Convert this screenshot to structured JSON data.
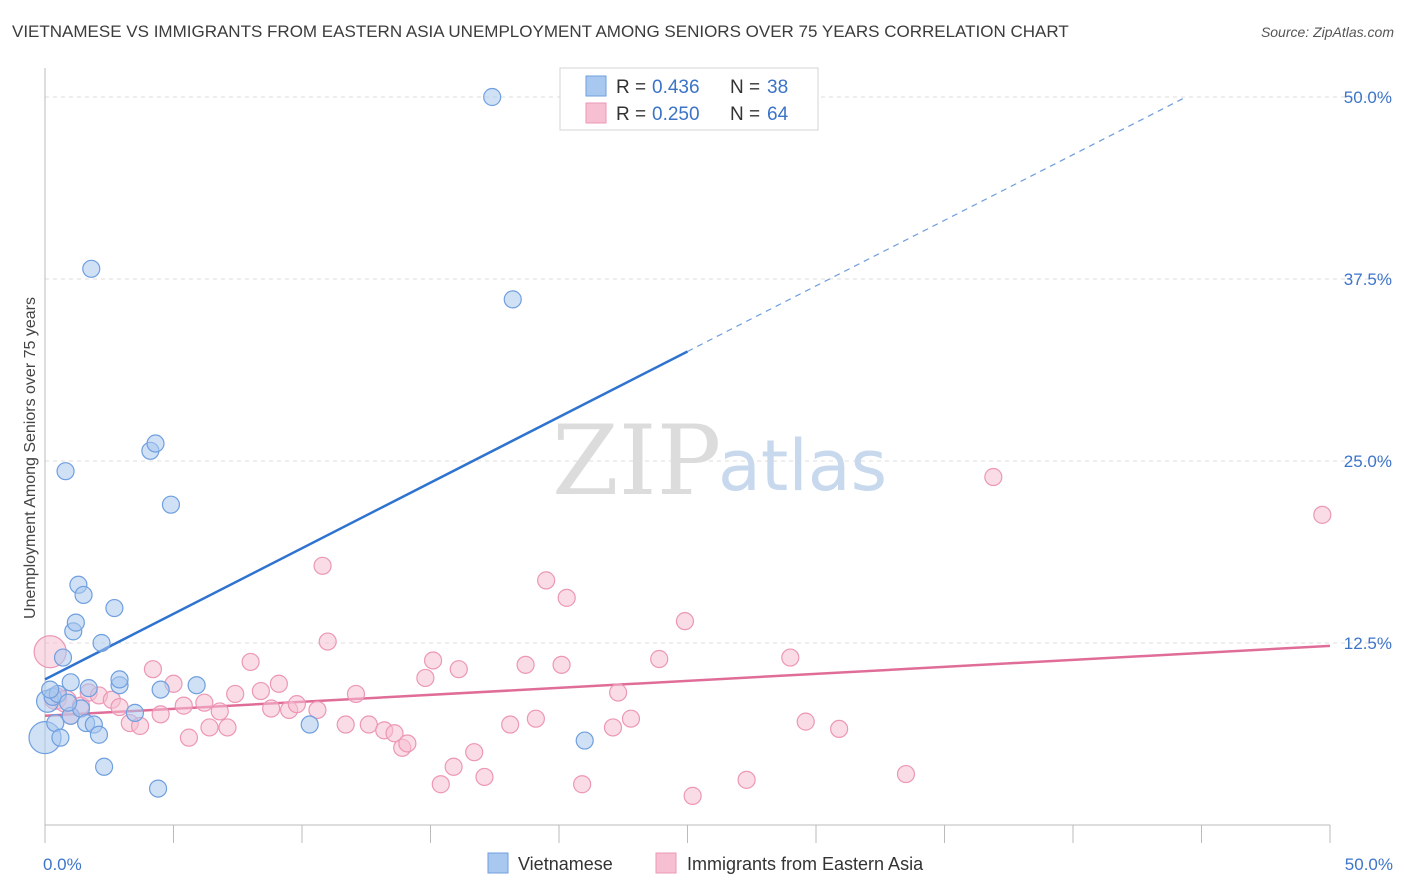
{
  "title": "VIETNAMESE VS IMMIGRANTS FROM EASTERN ASIA UNEMPLOYMENT AMONG SENIORS OVER 75 YEARS CORRELATION CHART",
  "source": "Source: ZipAtlas.com",
  "watermark": {
    "zip": "ZIP",
    "atlas": "atlas"
  },
  "colors": {
    "blue": "#2f73d0",
    "blue_fill": "#a9c8ef",
    "blue_stroke": "#6f9fdf",
    "pink": "#e06d98",
    "pink_fill": "#f6bfd2",
    "pink_stroke": "#ec97b5",
    "grid": "#dddddd",
    "axis_label": "#3d75c8"
  },
  "legend": [
    {
      "series": "Vietnamese",
      "r_label": "R =",
      "r_value": "0.436",
      "n_label": "N =",
      "n_value": "38"
    },
    {
      "series": "Immigrants from Eastern Asia",
      "r_label": "R =",
      "r_value": "0.250",
      "n_label": "N =",
      "n_value": "64"
    }
  ],
  "chart_data": {
    "type": "scatter",
    "title": "VIETNAMESE VS IMMIGRANTS FROM EASTERN ASIA UNEMPLOYMENT AMONG SENIORS OVER 75 YEARS CORRELATION CHART",
    "xlabel": "",
    "ylabel": "Unemployment Among Seniors over 75 years",
    "xlim": [
      0,
      50
    ],
    "ylim": [
      0,
      50
    ],
    "x_tick_labels": [
      "0.0%",
      "50.0%"
    ],
    "y_ticks": [
      12.5,
      25.0,
      37.5,
      50.0
    ],
    "y_tick_labels": [
      "12.5%",
      "25.0%",
      "37.5%",
      "50.0%"
    ],
    "series": [
      {
        "name": "Vietnamese",
        "color": "#2f73d0",
        "trend": {
          "x0": 0,
          "y0": 10.0,
          "x_solid_end": 25,
          "x1": 44.4,
          "y1": 50.0
        },
        "points": [
          {
            "x": 0.0,
            "y": 6.0,
            "s": 3
          },
          {
            "x": 0.1,
            "y": 8.5,
            "s": 2
          },
          {
            "x": 0.3,
            "y": 8.8,
            "s": 1
          },
          {
            "x": 0.4,
            "y": 7.0,
            "s": 1
          },
          {
            "x": 0.5,
            "y": 9.0,
            "s": 1
          },
          {
            "x": 0.6,
            "y": 6.0,
            "s": 1
          },
          {
            "x": 0.7,
            "y": 11.5,
            "s": 1
          },
          {
            "x": 0.8,
            "y": 24.3,
            "s": 1
          },
          {
            "x": 1.0,
            "y": 7.5,
            "s": 1
          },
          {
            "x": 1.1,
            "y": 13.3,
            "s": 1
          },
          {
            "x": 1.2,
            "y": 13.9,
            "s": 1
          },
          {
            "x": 1.3,
            "y": 16.5,
            "s": 1
          },
          {
            "x": 1.4,
            "y": 8.0,
            "s": 1
          },
          {
            "x": 1.5,
            "y": 15.8,
            "s": 1
          },
          {
            "x": 1.6,
            "y": 7.0,
            "s": 1
          },
          {
            "x": 1.7,
            "y": 9.4,
            "s": 1
          },
          {
            "x": 1.8,
            "y": 38.2,
            "s": 1
          },
          {
            "x": 1.9,
            "y": 6.9,
            "s": 1
          },
          {
            "x": 2.1,
            "y": 6.2,
            "s": 1
          },
          {
            "x": 2.2,
            "y": 12.5,
            "s": 1
          },
          {
            "x": 2.3,
            "y": 4.0,
            "s": 1
          },
          {
            "x": 2.7,
            "y": 14.9,
            "s": 1
          },
          {
            "x": 2.9,
            "y": 9.6,
            "s": 1
          },
          {
            "x": 2.9,
            "y": 10.0,
            "s": 1
          },
          {
            "x": 3.5,
            "y": 7.7,
            "s": 1
          },
          {
            "x": 4.1,
            "y": 25.7,
            "s": 1
          },
          {
            "x": 4.3,
            "y": 26.2,
            "s": 1
          },
          {
            "x": 4.4,
            "y": 2.5,
            "s": 1
          },
          {
            "x": 4.5,
            "y": 9.3,
            "s": 1
          },
          {
            "x": 4.9,
            "y": 22.0,
            "s": 1
          },
          {
            "x": 5.9,
            "y": 9.6,
            "s": 1
          },
          {
            "x": 10.3,
            "y": 6.9,
            "s": 1
          },
          {
            "x": 17.4,
            "y": 50.0,
            "s": 1
          },
          {
            "x": 18.2,
            "y": 36.1,
            "s": 1
          },
          {
            "x": 21.0,
            "y": 5.8,
            "s": 1
          },
          {
            "x": 0.2,
            "y": 9.3,
            "s": 1
          },
          {
            "x": 0.9,
            "y": 8.4,
            "s": 1
          },
          {
            "x": 1.0,
            "y": 9.8,
            "s": 1
          }
        ]
      },
      {
        "name": "Immigrants from Eastern Asia",
        "color": "#e06d98",
        "trend": {
          "x0": 0,
          "y0": 7.5,
          "x1": 50,
          "y1": 12.3
        },
        "points": [
          {
            "x": 0.2,
            "y": 11.9,
            "s": 3
          },
          {
            "x": 0.4,
            "y": 8.7,
            "s": 2
          },
          {
            "x": 0.8,
            "y": 8.5,
            "s": 2
          },
          {
            "x": 1.0,
            "y": 7.5,
            "s": 1
          },
          {
            "x": 1.4,
            "y": 8.2,
            "s": 1
          },
          {
            "x": 1.7,
            "y": 9.1,
            "s": 1
          },
          {
            "x": 2.1,
            "y": 8.9,
            "s": 1
          },
          {
            "x": 2.6,
            "y": 8.6,
            "s": 1
          },
          {
            "x": 2.9,
            "y": 8.1,
            "s": 1
          },
          {
            "x": 3.3,
            "y": 7.0,
            "s": 1
          },
          {
            "x": 3.7,
            "y": 6.8,
            "s": 1
          },
          {
            "x": 4.2,
            "y": 10.7,
            "s": 1
          },
          {
            "x": 4.5,
            "y": 7.6,
            "s": 1
          },
          {
            "x": 5.0,
            "y": 9.7,
            "s": 1
          },
          {
            "x": 5.4,
            "y": 8.2,
            "s": 1
          },
          {
            "x": 5.6,
            "y": 6.0,
            "s": 1
          },
          {
            "x": 6.2,
            "y": 8.4,
            "s": 1
          },
          {
            "x": 6.4,
            "y": 6.7,
            "s": 1
          },
          {
            "x": 6.8,
            "y": 7.8,
            "s": 1
          },
          {
            "x": 7.1,
            "y": 6.7,
            "s": 1
          },
          {
            "x": 7.4,
            "y": 9.0,
            "s": 1
          },
          {
            "x": 8.0,
            "y": 11.2,
            "s": 1
          },
          {
            "x": 8.4,
            "y": 9.2,
            "s": 1
          },
          {
            "x": 8.8,
            "y": 8.0,
            "s": 1
          },
          {
            "x": 9.1,
            "y": 9.7,
            "s": 1
          },
          {
            "x": 9.5,
            "y": 7.9,
            "s": 1
          },
          {
            "x": 9.8,
            "y": 8.3,
            "s": 1
          },
          {
            "x": 10.6,
            "y": 7.9,
            "s": 1
          },
          {
            "x": 10.8,
            "y": 17.8,
            "s": 1
          },
          {
            "x": 11.0,
            "y": 12.6,
            "s": 1
          },
          {
            "x": 11.7,
            "y": 6.9,
            "s": 1
          },
          {
            "x": 12.1,
            "y": 9.0,
            "s": 1
          },
          {
            "x": 12.6,
            "y": 6.9,
            "s": 1
          },
          {
            "x": 13.2,
            "y": 6.5,
            "s": 1
          },
          {
            "x": 13.6,
            "y": 6.3,
            "s": 1
          },
          {
            "x": 13.9,
            "y": 5.3,
            "s": 1
          },
          {
            "x": 14.1,
            "y": 5.6,
            "s": 1
          },
          {
            "x": 14.8,
            "y": 10.1,
            "s": 1
          },
          {
            "x": 15.1,
            "y": 11.3,
            "s": 1
          },
          {
            "x": 15.4,
            "y": 2.8,
            "s": 1
          },
          {
            "x": 15.9,
            "y": 4.0,
            "s": 1
          },
          {
            "x": 16.1,
            "y": 10.7,
            "s": 1
          },
          {
            "x": 16.7,
            "y": 5.0,
            "s": 1
          },
          {
            "x": 17.1,
            "y": 3.3,
            "s": 1
          },
          {
            "x": 18.1,
            "y": 6.9,
            "s": 1
          },
          {
            "x": 18.7,
            "y": 11.0,
            "s": 1
          },
          {
            "x": 19.1,
            "y": 7.3,
            "s": 1
          },
          {
            "x": 19.5,
            "y": 16.8,
            "s": 1
          },
          {
            "x": 20.1,
            "y": 11.0,
            "s": 1
          },
          {
            "x": 20.3,
            "y": 15.6,
            "s": 1
          },
          {
            "x": 20.9,
            "y": 2.8,
            "s": 1
          },
          {
            "x": 22.1,
            "y": 6.7,
            "s": 1
          },
          {
            "x": 22.3,
            "y": 9.1,
            "s": 1
          },
          {
            "x": 22.8,
            "y": 7.3,
            "s": 1
          },
          {
            "x": 23.9,
            "y": 11.4,
            "s": 1
          },
          {
            "x": 24.9,
            "y": 14.0,
            "s": 1
          },
          {
            "x": 25.2,
            "y": 2.0,
            "s": 1
          },
          {
            "x": 27.3,
            "y": 3.1,
            "s": 1
          },
          {
            "x": 29.0,
            "y": 11.5,
            "s": 1
          },
          {
            "x": 29.6,
            "y": 7.1,
            "s": 1
          },
          {
            "x": 30.9,
            "y": 6.6,
            "s": 1
          },
          {
            "x": 33.5,
            "y": 3.5,
            "s": 1
          },
          {
            "x": 36.9,
            "y": 23.9,
            "s": 1
          },
          {
            "x": 49.7,
            "y": 21.3,
            "s": 1
          }
        ]
      }
    ]
  }
}
